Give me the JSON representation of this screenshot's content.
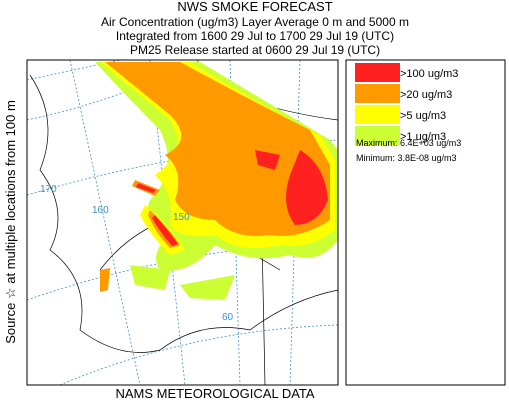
{
  "header": {
    "title": "NWS SMOKE FORECAST",
    "lines": [
      "Air Concentration (ug/m3) Layer Average    0 m and  5000 m",
      "Integrated from 1600 29 Jul to 1700 29 Jul 19 (UTC)",
      "PM25 Release started at 0600 29 Jul 19 (UTC)"
    ]
  },
  "side_label": "Source ☆ at multiple locations   from  100 m",
  "footer": "NAMS METEOROLOGICAL DATA",
  "legend": {
    "items": [
      {
        "label": ">100 ug/m3",
        "color": "#ff2020"
      },
      {
        "label": ">20 ug/m3",
        "color": "#ff9900"
      },
      {
        "label": ">5 ug/m3",
        "color": "#ffff00"
      },
      {
        "label": ">1 ug/m3",
        "color": "#ccff33"
      }
    ],
    "maximum": "Maximum: 6.4E+03 ug/m3",
    "minimum": "Minimum: 3.8E-08 ug/m3"
  },
  "map": {
    "grid_labels": [
      "170",
      "160",
      "150",
      "60"
    ]
  }
}
